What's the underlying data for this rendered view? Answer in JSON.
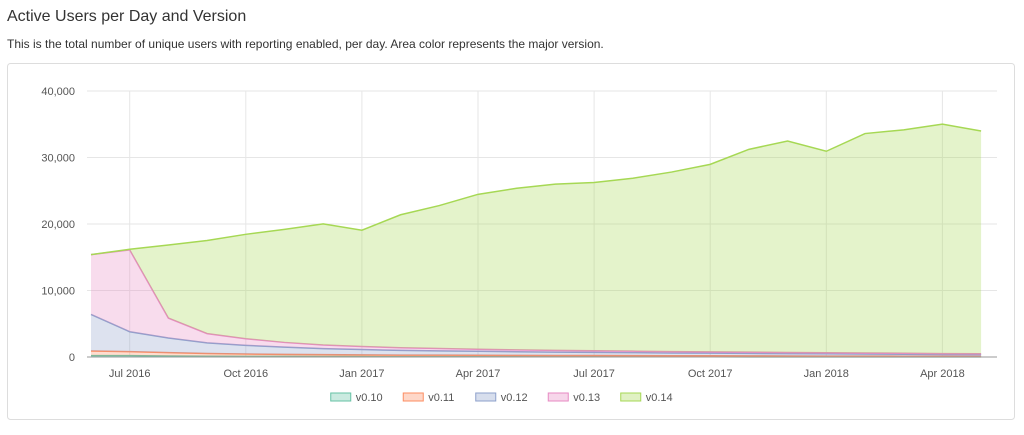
{
  "chart_data": {
    "type": "stacked-area",
    "title": "Active Users per Day and Version",
    "subtitle": "This is the total number of unique users with reporting enabled, per day. Area color represents the major version.",
    "categories": [
      null,
      "Jul 2016",
      null,
      null,
      "Oct 2016",
      null,
      null,
      "Jan 2017",
      null,
      null,
      "Apr 2017",
      null,
      null,
      "Jul 2017",
      null,
      null,
      "Oct 2017",
      null,
      null,
      "Jan 2018",
      null,
      null,
      "Apr 2018",
      null
    ],
    "series": [
      {
        "name": "v0.10",
        "color": "#66c2a5",
        "values": [
          200,
          200,
          150,
          120,
          100,
          90,
          80,
          70,
          60,
          55,
          50,
          45,
          40,
          40,
          35,
          30,
          30,
          25,
          25,
          20,
          20,
          20,
          15,
          15
        ]
      },
      {
        "name": "v0.11",
        "color": "#fc8d62",
        "values": [
          700,
          600,
          500,
          400,
          350,
          300,
          280,
          250,
          230,
          220,
          210,
          200,
          190,
          180,
          170,
          160,
          150,
          140,
          130,
          120,
          110,
          100,
          90,
          85
        ]
      },
      {
        "name": "v0.12",
        "color": "#8da0cb",
        "values": [
          5500,
          3000,
          2200,
          1600,
          1300,
          1100,
          900,
          800,
          700,
          650,
          600,
          550,
          500,
          480,
          450,
          420,
          400,
          380,
          360,
          340,
          320,
          300,
          280,
          260
        ]
      },
      {
        "name": "v0.13",
        "color": "#e78ac3",
        "values": [
          9000,
          12300,
          3000,
          1400,
          1000,
          700,
          550,
          450,
          400,
          350,
          300,
          280,
          260,
          240,
          220,
          200,
          190,
          180,
          170,
          160,
          150,
          140,
          130,
          120
        ]
      },
      {
        "name": "v0.14",
        "color": "#a6d854",
        "values": [
          0,
          100,
          11000,
          14000,
          15700,
          17000,
          18200,
          17500,
          20000,
          21500,
          23300,
          24300,
          25000,
          25300,
          26000,
          27000,
          28200,
          30500,
          31800,
          30300,
          33000,
          33600,
          34500,
          33500
        ]
      }
    ],
    "ylim": [
      0,
      40000
    ],
    "yticks": [
      0,
      {
        "value": 10000,
        "label": "10,000"
      },
      {
        "value": 20000,
        "label": "20,000"
      },
      {
        "value": 30000,
        "label": "30,000"
      },
      {
        "value": 40000,
        "label": "40,000"
      }
    ],
    "grid": true
  }
}
